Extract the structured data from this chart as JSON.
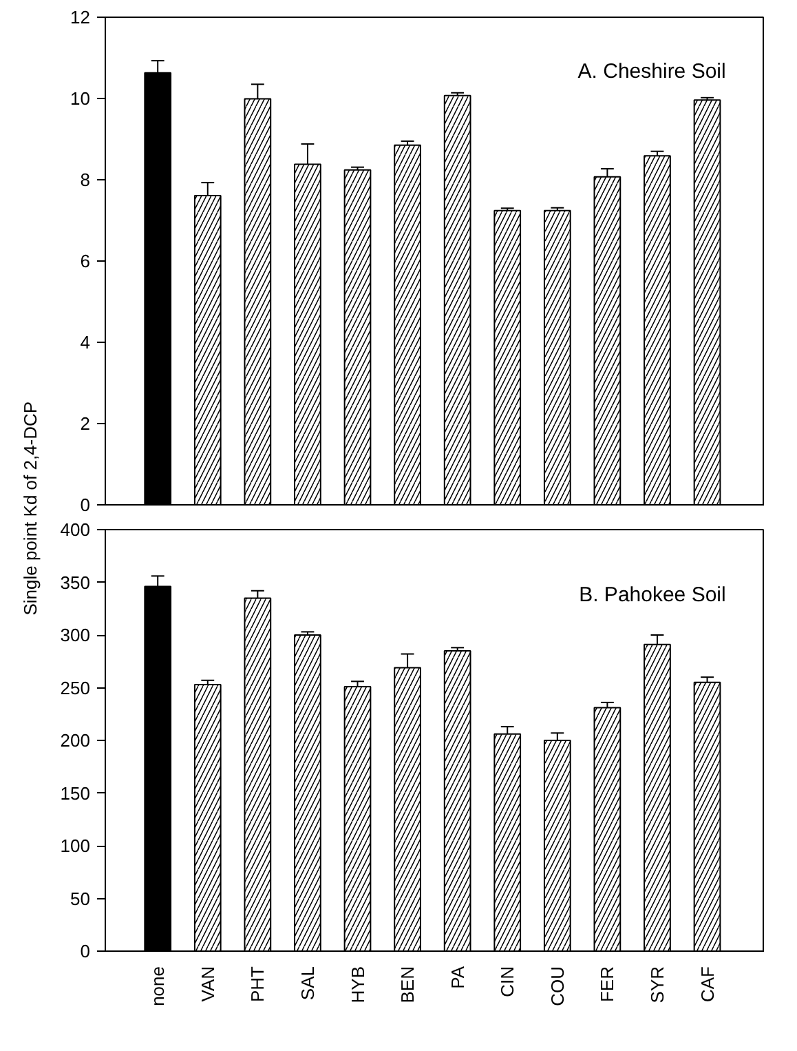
{
  "chart_data": [
    {
      "type": "bar",
      "ylabel": "Single point Kd of 2,4-DCP",
      "annotations": [
        "A.  Cheshire Soil"
      ],
      "categories": [
        null,
        null,
        null,
        null,
        null,
        null,
        null,
        null,
        null,
        null,
        null,
        null
      ],
      "values": [
        10.63,
        7.61,
        9.99,
        8.38,
        8.24,
        8.85,
        10.07,
        7.24,
        7.24,
        8.07,
        8.59,
        9.96
      ],
      "errors": [
        0.3,
        0.32,
        0.36,
        0.5,
        0.07,
        0.1,
        0.07,
        0.06,
        0.07,
        0.2,
        0.11,
        0.06
      ],
      "colors": [
        "#000000",
        "#ffffff",
        "#ffffff",
        "#ffffff",
        "#ffffff",
        "#ffffff",
        "#ffffff",
        "#ffffff",
        "#ffffff",
        "#ffffff",
        "#ffffff",
        "#ffffff"
      ],
      "ylim": [
        0,
        12
      ],
      "yticks": [
        0,
        2,
        4,
        6,
        8,
        10,
        12
      ],
      "grid": false
    },
    {
      "type": "bar",
      "annotations": [
        "B.  Pahokee Soil"
      ],
      "categories": [
        "none",
        "VAN",
        "PHT",
        "SAL",
        "HYB",
        "BEN",
        "PA",
        "CIN",
        "COU",
        "FER",
        "SYR",
        "CAF"
      ],
      "values": [
        346,
        253,
        335,
        300,
        251,
        269,
        285,
        206,
        200,
        231,
        291,
        255
      ],
      "errors": [
        10,
        4,
        7,
        3,
        5,
        13,
        3,
        7,
        7,
        5,
        9,
        5
      ],
      "colors": [
        "#000000",
        "#ffffff",
        "#ffffff",
        "#ffffff",
        "#ffffff",
        "#ffffff",
        "#ffffff",
        "#ffffff",
        "#ffffff",
        "#ffffff",
        "#ffffff",
        "#ffffff"
      ],
      "ylim": [
        0,
        400
      ],
      "yticks": [
        0,
        50,
        100,
        150,
        200,
        250,
        300,
        350,
        400
      ],
      "grid": false
    }
  ]
}
